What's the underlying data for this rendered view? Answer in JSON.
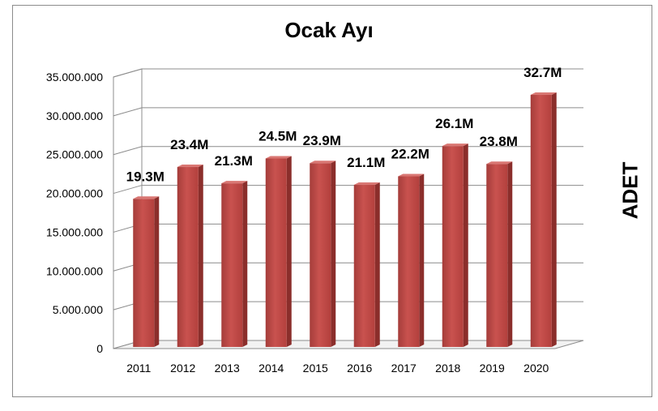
{
  "chart_data": {
    "type": "bar",
    "title": "Ocak Ayı",
    "xlabel": "",
    "ylabel": "ADET",
    "categories": [
      "2011",
      "2012",
      "2013",
      "2014",
      "2015",
      "2016",
      "2017",
      "2018",
      "2019",
      "2020"
    ],
    "values": [
      19300000,
      23400000,
      21300000,
      24500000,
      23900000,
      21100000,
      22200000,
      26100000,
      23800000,
      32700000
    ],
    "data_labels": [
      "19.3M",
      "23.4M",
      "21.3M",
      "24.5M",
      "23.9M",
      "21.1M",
      "22.2M",
      "26.1M",
      "23.8M",
      "32.7M"
    ],
    "yticks": [
      "0",
      "5.000.000",
      "10.000.000",
      "15.000.000",
      "20.000.000",
      "25.000.000",
      "30.000.000",
      "35.000.000"
    ],
    "ylim": [
      0,
      35000000
    ],
    "grid": true,
    "bar_color": "#c0504d",
    "legend": "none"
  }
}
